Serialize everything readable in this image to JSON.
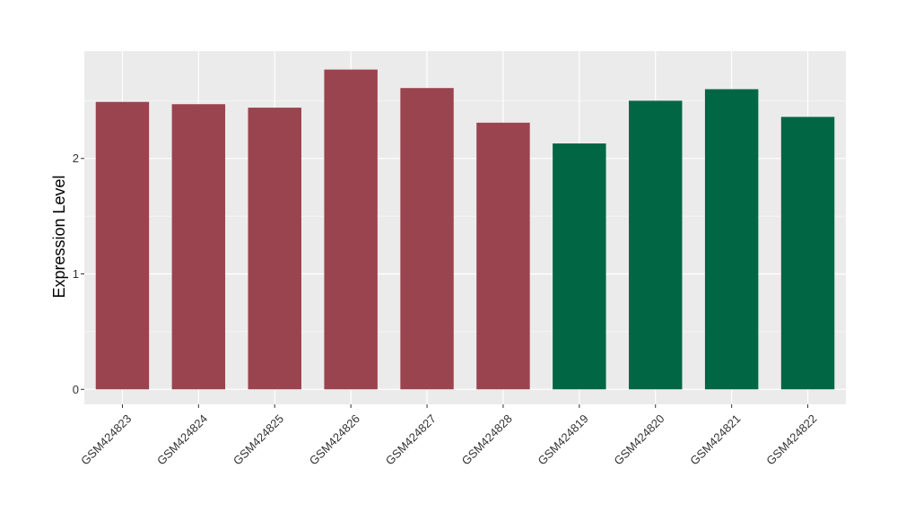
{
  "chart_data": {
    "type": "bar",
    "categories": [
      "GSM424823",
      "GSM424824",
      "GSM424825",
      "GSM424826",
      "GSM424827",
      "GSM424828",
      "GSM424819",
      "GSM424820",
      "GSM424821",
      "GSM424822"
    ],
    "values": [
      2.49,
      2.47,
      2.44,
      2.77,
      2.61,
      2.31,
      2.13,
      2.5,
      2.6,
      2.36
    ],
    "bar_colors": [
      "#99444f",
      "#99444f",
      "#99444f",
      "#99444f",
      "#99444f",
      "#99444f",
      "#006644",
      "#006644",
      "#006644",
      "#006644"
    ],
    "ylabel": "Expression Level",
    "xlabel": "",
    "ylim": [
      -0.13,
      2.93
    ],
    "yticks": [
      0,
      1,
      2
    ],
    "grid": true,
    "panel_background": "#ebebeb",
    "gridline_color": "#ffffff"
  }
}
